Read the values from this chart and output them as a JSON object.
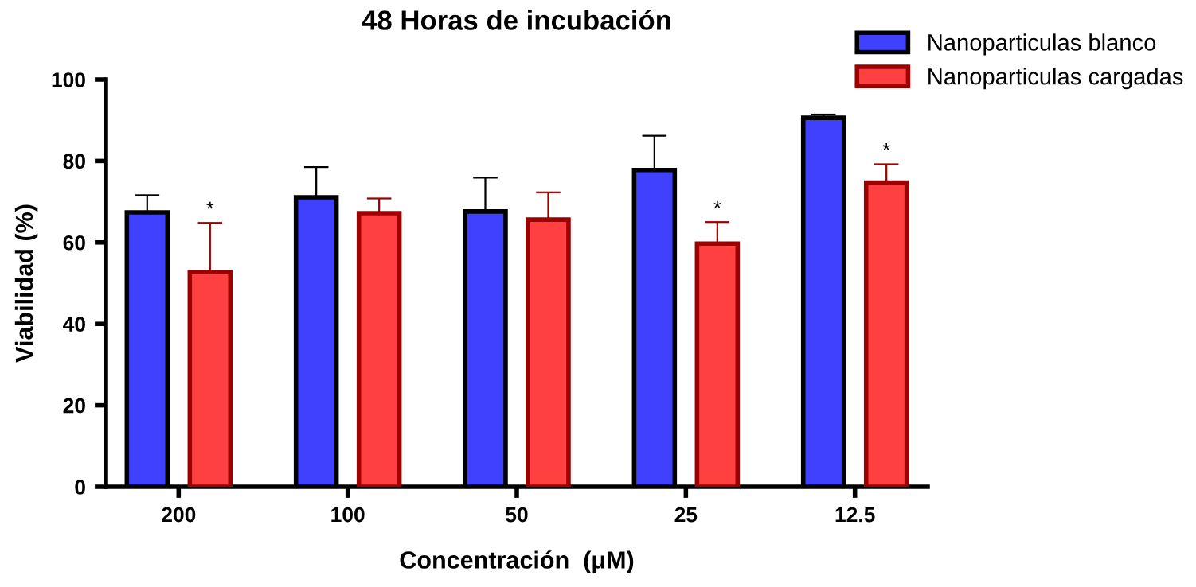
{
  "chart_data": {
    "type": "bar",
    "title": "48 Horas de incubación",
    "xlabel": "Concentración  (μM)",
    "ylabel": "Viabilidad (%)",
    "categories": [
      "200",
      "100",
      "50",
      "25",
      "12.5"
    ],
    "series": [
      {
        "name": "Nanoparticulas blanco",
        "color": "#4040ff",
        "values": [
          67.4,
          71.1,
          67.6,
          77.8,
          90.6
        ],
        "errors": [
          4.2,
          7.4,
          8.3,
          8.4,
          0.8
        ]
      },
      {
        "name": "Nanoparticulas cargadas",
        "color": "#ff4040",
        "values": [
          52.7,
          67.2,
          65.6,
          59.7,
          74.7
        ],
        "errors": [
          12.1,
          3.6,
          6.7,
          5.3,
          4.5
        ]
      }
    ],
    "annotations": [
      "*",
      "*",
      "*"
    ],
    "ylim": [
      0,
      100
    ],
    "yticks": [
      0,
      20,
      40,
      60,
      80,
      100
    ],
    "grid": false,
    "legend": "top right"
  }
}
